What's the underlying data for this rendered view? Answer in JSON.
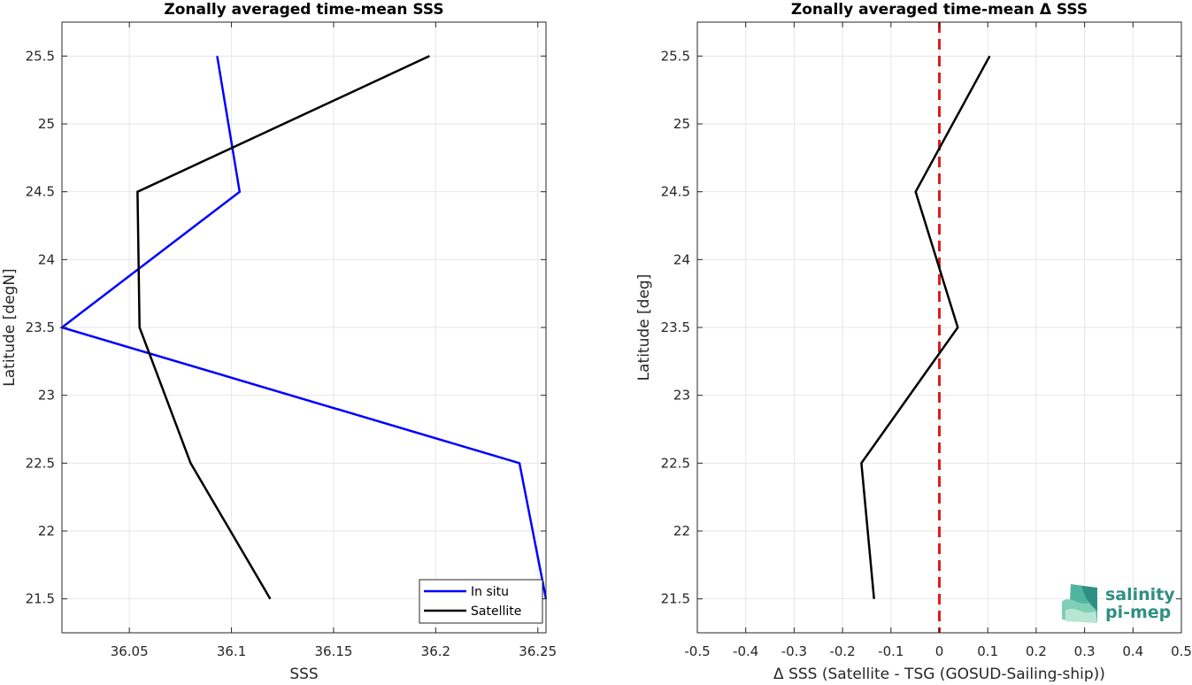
{
  "chart_data": [
    {
      "type": "line",
      "title": "Zonally averaged time-mean SSS",
      "xlabel": "SSS",
      "ylabel": "Latitude [degN]",
      "xlim": [
        36.017,
        36.254
      ],
      "ylim": [
        21.25,
        25.75
      ],
      "xticks": [
        36.05,
        36.1,
        36.15,
        36.2,
        36.25
      ],
      "xtick_labels": [
        "36.05",
        "36.1",
        "36.15",
        "36.2",
        "36.25"
      ],
      "yticks": [
        21.5,
        22,
        22.5,
        23,
        23.5,
        24,
        24.5,
        25,
        25.5
      ],
      "ytick_labels": [
        "21.5",
        "22",
        "22.5",
        "23",
        "23.5",
        "24",
        "24.5",
        "25",
        "25.5"
      ],
      "grid": true,
      "legend_position": "bottom-right",
      "series": [
        {
          "name": "In situ",
          "color": "#0000ff",
          "x": [
            36.254,
            36.241,
            36.017,
            36.104,
            36.093
          ],
          "y": [
            21.5,
            22.5,
            23.5,
            24.5,
            25.5
          ]
        },
        {
          "name": "Satellite",
          "color": "#000000",
          "x": [
            36.119,
            36.08,
            36.055,
            36.054,
            36.197
          ],
          "y": [
            21.5,
            22.5,
            23.5,
            24.5,
            25.5
          ]
        }
      ]
    },
    {
      "type": "line",
      "title": "Zonally averaged time-mean Δ SSS",
      "xlabel": "Δ SSS (Satellite - TSG (GOSUD-Sailing-ship))",
      "ylabel": "Latitude [deg]",
      "xlim": [
        -0.5,
        0.5
      ],
      "ylim": [
        21.25,
        25.75
      ],
      "xticks": [
        -0.5,
        -0.4,
        -0.3,
        -0.2,
        -0.1,
        0,
        0.1,
        0.2,
        0.3,
        0.4,
        0.5
      ],
      "xtick_labels": [
        "-0.5",
        "-0.4",
        "-0.3",
        "-0.2",
        "-0.1",
        "0",
        "0.1",
        "0.2",
        "0.3",
        "0.4",
        "0.5"
      ],
      "yticks": [
        21.5,
        22,
        22.5,
        23,
        23.5,
        24,
        24.5,
        25,
        25.5
      ],
      "ytick_labels": [
        "21.5",
        "22",
        "22.5",
        "23",
        "23.5",
        "24",
        "24.5",
        "25",
        "25.5"
      ],
      "grid": true,
      "reference_line": {
        "x": 0,
        "color": "#e31a1c",
        "style": "dashed"
      },
      "series": [
        {
          "color": "#000000",
          "x": [
            -0.135,
            -0.161,
            0.038,
            -0.049,
            0.104
          ],
          "y": [
            21.5,
            22.5,
            23.5,
            24.5,
            25.5
          ]
        }
      ]
    }
  ],
  "logo": {
    "line1": "salinity",
    "line2": "pi-mep",
    "color": "#2f8f83",
    "icon": "salinity-waves-logo-icon"
  }
}
